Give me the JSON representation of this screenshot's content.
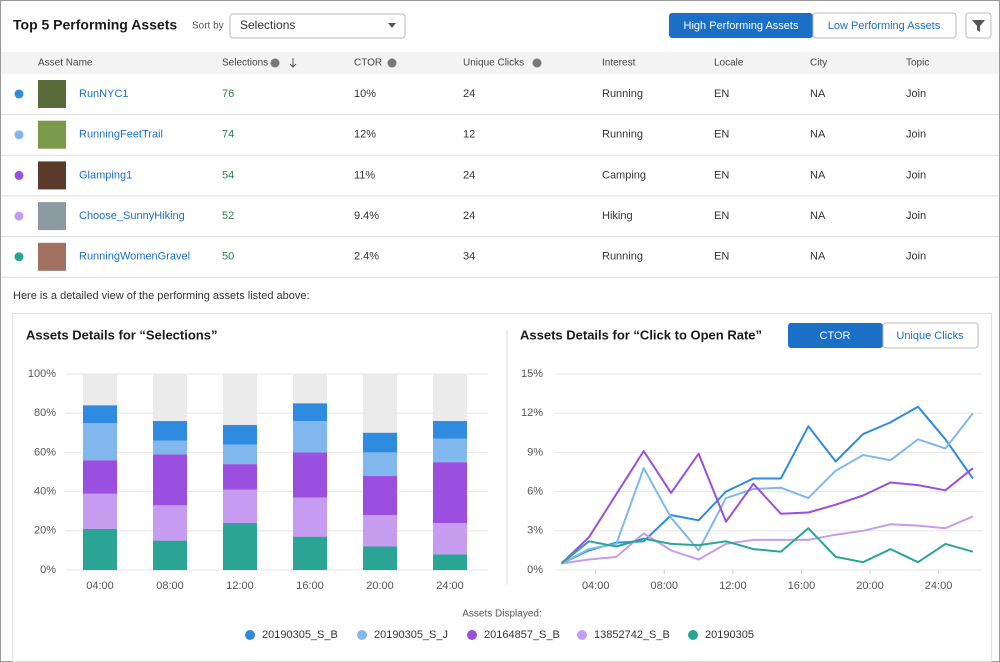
{
  "header": {
    "title": "Top 5 Performing Assets",
    "sort_label": "Sort by",
    "sort_value": "Selections",
    "tabs": [
      "High Performing Assets",
      "Low Performing Assets"
    ]
  },
  "table": {
    "columns": [
      "Asset Name",
      "Selections",
      "CTOR",
      "Unique Clicks",
      "Interest",
      "Locale",
      "City",
      "Topic"
    ],
    "rows": [
      [
        "RunNYC1",
        76,
        "10%",
        24,
        "Running",
        "EN",
        "NA",
        "Join"
      ],
      [
        "RunningFeetTrail",
        74,
        "12%",
        12,
        "Running",
        "EN",
        "NA",
        "Join"
      ],
      [
        "Glamping1",
        54,
        "11%",
        24,
        "Camping",
        "EN",
        "NA",
        "Join"
      ],
      [
        "Choose_SunnyHiking",
        52,
        "9.4%",
        24,
        "Hiking",
        "EN",
        "NA",
        "Join"
      ],
      [
        "RunningWomenGravel",
        50,
        "2.4%",
        34,
        "Running",
        "EN",
        "NA",
        "Join"
      ]
    ]
  },
  "details": {
    "intro": "Here is a detailed view of the performing assets listed above:",
    "legend_title": "Assets Displayed:",
    "line_toggle": [
      "CTOR",
      "Unique Clicks"
    ]
  },
  "chart_data": [
    {
      "type": "stacked_bar",
      "title": "Assets Details for “Selections”",
      "categories": [
        "04:00",
        "08:00",
        "12:00",
        "16:00",
        "20:00",
        "24:00"
      ],
      "series": [
        {
          "name": "20190305_S_B",
          "color": "#2f8be0",
          "values": [
            9,
            10,
            10,
            9,
            10,
            9
          ]
        },
        {
          "name": "20190305_S_J",
          "color": "#80b8ee",
          "values": [
            19,
            7,
            10,
            16,
            12,
            12
          ]
        },
        {
          "name": "20164857_S_B",
          "color": "#9a4fe0",
          "values": [
            17,
            26,
            13,
            23,
            20,
            31
          ]
        },
        {
          "name": "13852742_S_B",
          "color": "#c59cf0",
          "values": [
            18,
            18,
            17,
            20,
            16,
            16
          ]
        },
        {
          "name": "20190305",
          "color": "#2aa595",
          "values": [
            21,
            15,
            24,
            17,
            12,
            8
          ]
        }
      ],
      "ylim": [
        0,
        100
      ],
      "yticks": [
        {
          "value": 0,
          "label": "0%"
        },
        {
          "value": 20,
          "label": "20%"
        },
        {
          "value": 40,
          "label": "40%"
        },
        {
          "value": 60,
          "label": "60%"
        },
        {
          "value": 80,
          "label": "80%"
        },
        {
          "value": 100,
          "label": "100%"
        }
      ],
      "grid": true
    },
    {
      "type": "line",
      "title": "Assets Details for “Click to Open Rate”",
      "x": [
        2,
        3.6,
        5.2,
        6.8,
        8.4,
        10,
        11.6,
        13.2,
        14.8,
        16.4,
        18,
        19.6,
        21.2,
        22.8,
        24.4,
        26
      ],
      "series": [
        {
          "name": "20190305_S_B",
          "color": "#2f8be0",
          "values": [
            0.5,
            1.5,
            2.1,
            2.2,
            4.2,
            3.8,
            6.0,
            7.0,
            7.0,
            11.0,
            8.3,
            10.4,
            11.3,
            12.5,
            10.0,
            7.0
          ]
        },
        {
          "name": "20190305_S_J",
          "color": "#80b8ee",
          "values": [
            0.5,
            1.6,
            2.0,
            7.8,
            4.0,
            1.5,
            5.5,
            6.2,
            6.3,
            5.5,
            7.6,
            8.8,
            8.4,
            10.0,
            9.3,
            12.0
          ]
        },
        {
          "name": "20164857_S_B",
          "color": "#9a4fe0",
          "values": [
            0.5,
            2.5,
            5.8,
            9.1,
            5.9,
            8.9,
            3.7,
            6.6,
            4.3,
            4.4,
            5.0,
            5.7,
            6.7,
            6.5,
            6.1,
            7.8
          ]
        },
        {
          "name": "13852742_S_B",
          "color": "#c59cf0",
          "values": [
            0.5,
            0.8,
            1.0,
            2.8,
            1.5,
            0.8,
            2.0,
            2.3,
            2.3,
            2.3,
            2.7,
            3.0,
            3.5,
            3.4,
            3.2,
            4.1
          ]
        },
        {
          "name": "20190305",
          "color": "#2aa595",
          "values": [
            0.5,
            2.2,
            1.8,
            2.4,
            2.0,
            1.9,
            2.2,
            1.6,
            1.4,
            3.2,
            1.0,
            0.6,
            1.6,
            0.6,
            2.0,
            1.4
          ]
        }
      ],
      "xlim": [
        1.8,
        26.3
      ],
      "xticks": [
        {
          "value": 4,
          "label": "04:00"
        },
        {
          "value": 8,
          "label": "08:00"
        },
        {
          "value": 12,
          "label": "12:00"
        },
        {
          "value": 16,
          "label": "16:00"
        },
        {
          "value": 20,
          "label": "20:00"
        },
        {
          "value": 24,
          "label": "24:00"
        }
      ],
      "ylim": [
        0,
        15
      ],
      "yticks": [
        {
          "value": 0,
          "label": "0%"
        },
        {
          "value": 3,
          "label": "3%"
        },
        {
          "value": 6,
          "label": "6%"
        },
        {
          "value": 9,
          "label": "9%"
        },
        {
          "value": 12,
          "label": "12%"
        },
        {
          "value": 15,
          "label": "15%"
        }
      ],
      "grid": true
    }
  ]
}
